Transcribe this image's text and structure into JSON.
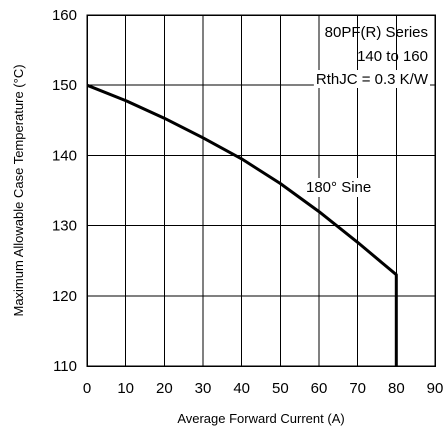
{
  "chart_data": {
    "type": "line",
    "xlabel": "Average Forward Current (A)",
    "ylabel": "Maximum Allowable Case Temperature (°C)",
    "xlim": [
      0,
      90
    ],
    "ylim": [
      110,
      160
    ],
    "x_ticks": [
      "0",
      "10",
      "20",
      "30",
      "40",
      "50",
      "60",
      "70",
      "80",
      "90"
    ],
    "y_ticks": [
      "110",
      "120",
      "130",
      "140",
      "150",
      "160"
    ],
    "grid": true,
    "legend": null,
    "annotations": {
      "series_line1": "80PF(R) Series",
      "series_line2": "140 to 160",
      "series_line3": "RthJC = 0.3 K/W",
      "curve_label": "180° Sine"
    },
    "series": [
      {
        "x": [
          0,
          10,
          20,
          30,
          40,
          50,
          60,
          70,
          80,
          80,
          80
        ],
        "y": [
          150,
          147.8,
          145.3,
          142.5,
          139.5,
          136,
          132,
          127.6,
          123,
          116,
          110
        ]
      }
    ]
  }
}
